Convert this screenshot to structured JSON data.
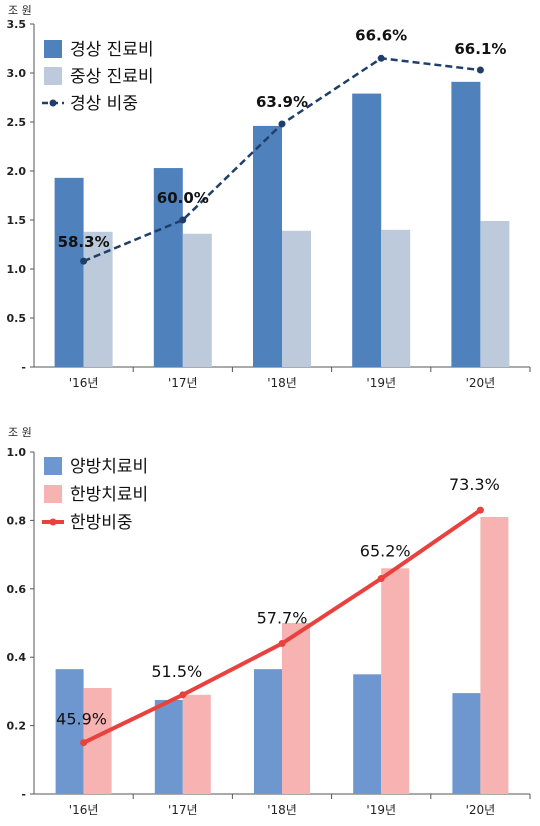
{
  "chart_data": [
    {
      "type": "bar",
      "unit_label": "조 원",
      "categories": [
        "'16년",
        "'17년",
        "'18년",
        "'19년",
        "'20년"
      ],
      "ylim": [
        0,
        3.5
      ],
      "yticks": [
        "-",
        "0.5",
        "1.0",
        "1.5",
        "2.0",
        "2.5",
        "3.0",
        "3.5"
      ],
      "ytick_values": [
        0,
        0.5,
        1.0,
        1.5,
        2.0,
        2.5,
        3.0,
        3.5
      ],
      "legend_position": "top-left",
      "grid": false,
      "series": [
        {
          "name": "경상 진료비",
          "kind": "bar",
          "color": "#4f81bd",
          "values": [
            1.93,
            2.03,
            2.46,
            2.79,
            2.91
          ]
        },
        {
          "name": "중상 진료비",
          "kind": "bar",
          "color": "#bccadb",
          "values": [
            1.38,
            1.36,
            1.39,
            1.4,
            1.49
          ]
        },
        {
          "name": "경상 비중",
          "kind": "line",
          "style": "dashed",
          "color": "#1f3f6a",
          "values": [
            1.08,
            1.5,
            2.48,
            3.15,
            3.03
          ],
          "labels": [
            "58.3%",
            "60.0%",
            "63.9%",
            "66.6%",
            "66.1%"
          ]
        }
      ]
    },
    {
      "type": "bar",
      "unit_label": "조 원",
      "categories": [
        "'16년",
        "'17년",
        "'18년",
        "'19년",
        "'20년"
      ],
      "ylim": [
        0,
        1.0
      ],
      "yticks": [
        "-",
        "0.2",
        "0.4",
        "0.6",
        "0.8",
        "1.0"
      ],
      "ytick_values": [
        0,
        0.2,
        0.4,
        0.6,
        0.8,
        1.0
      ],
      "legend_position": "top-left",
      "grid": false,
      "series": [
        {
          "name": "양방치료비",
          "kind": "bar",
          "color": "#6f97cf",
          "values": [
            0.365,
            0.275,
            0.365,
            0.35,
            0.295
          ]
        },
        {
          "name": "한방치료비",
          "kind": "bar",
          "color": "#f7b2b2",
          "values": [
            0.31,
            0.29,
            0.5,
            0.66,
            0.81
          ]
        },
        {
          "name": "한방비중",
          "kind": "line",
          "style": "solid",
          "color": "#e8413e",
          "values": [
            0.15,
            0.29,
            0.44,
            0.63,
            0.83
          ],
          "labels": [
            "45.9%",
            "51.5%",
            "57.7%",
            "65.2%",
            "73.3%"
          ]
        }
      ]
    }
  ]
}
